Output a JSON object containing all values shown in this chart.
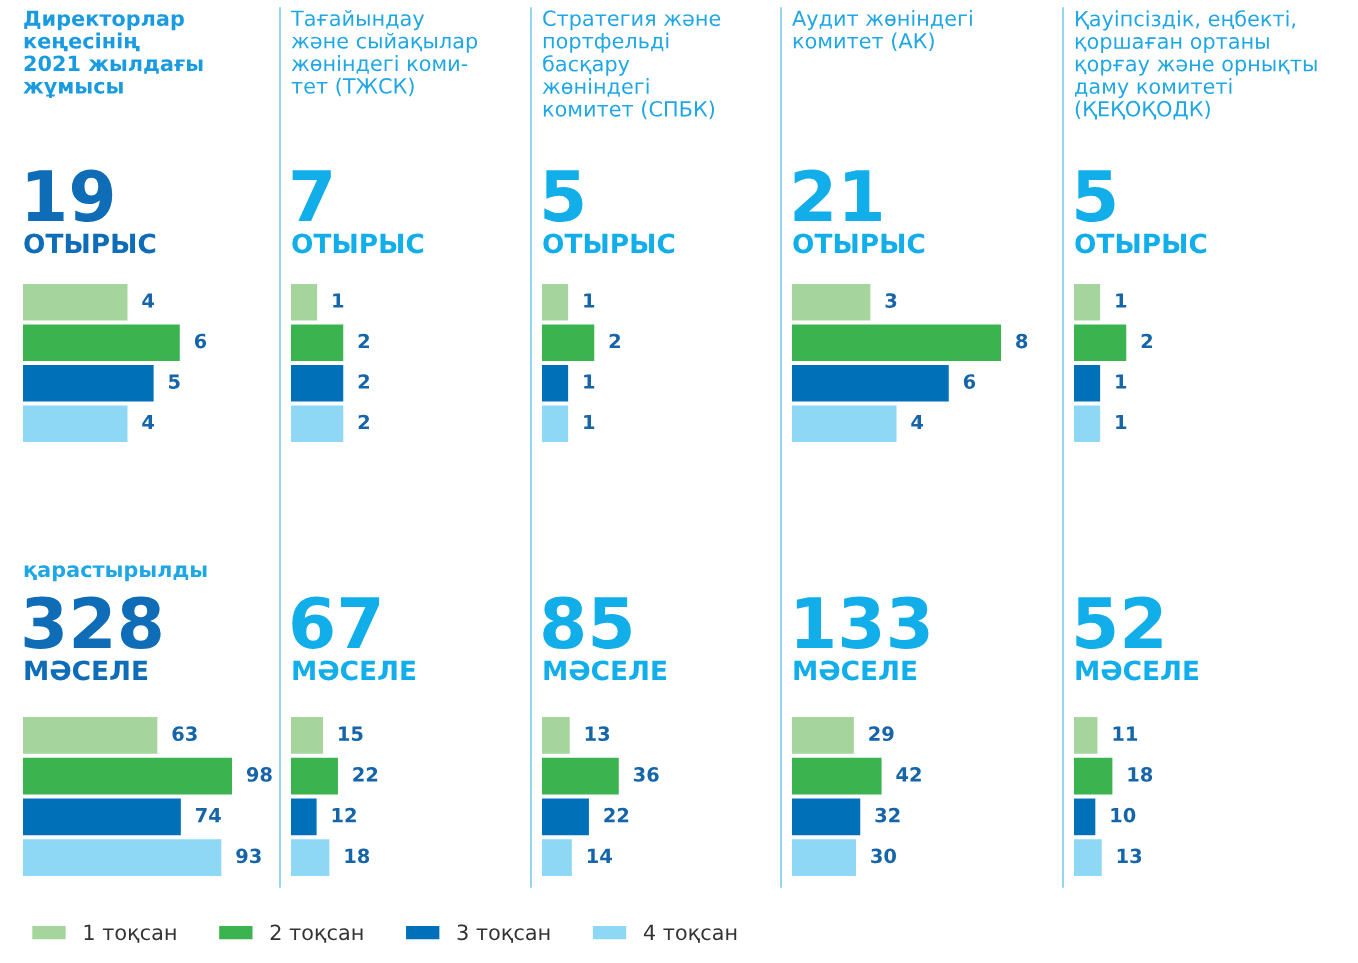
{
  "chart_data": [
    {
      "type": "bar",
      "orientation": "horizontal",
      "title": "Директорлар\nкеңесінің\n2021 жылдағы\nжұмысы",
      "annotations": [
        "19",
        "ОТЫРЫС"
      ],
      "categories": [
        null
      ],
      "data_labels": true,
      "legend": "bottom right",
      "series": [
        {
          "name": "1 тоқсан",
          "color": "#a5d49d",
          "values": [
            4
          ]
        },
        {
          "name": "2 тоқсан",
          "color": "#3bb34f",
          "values": [
            6
          ]
        },
        {
          "name": "3 тоқсан",
          "color": "#0070b8",
          "values": [
            5
          ]
        },
        {
          "name": "4 тоқсан",
          "color": "#8fd8f5",
          "values": [
            4
          ]
        }
      ]
    },
    {
      "type": "bar",
      "orientation": "horizontal",
      "title": "Тағайындау\nжәне сыйақылар\nжөніндегі коми-\nтет (ТЖСК)",
      "annotations": [
        "7",
        "ОТЫРЫС"
      ],
      "categories": [
        null
      ],
      "data_labels": true,
      "series": [
        {
          "color": "#a5d49d",
          "values": [
            1
          ]
        },
        {
          "color": "#3bb34f",
          "values": [
            2
          ]
        },
        {
          "color": "#0070b8",
          "values": [
            2
          ]
        },
        {
          "color": "#8fd8f5",
          "values": [
            2
          ]
        }
      ]
    },
    {
      "type": "bar",
      "orientation": "horizontal",
      "title": "Стратегия және\nпортфельді\nбасқару\nжөніндегі\nкомитет (СПБК)",
      "annotations": [
        "5",
        "ОТЫРЫС"
      ],
      "categories": [
        null
      ],
      "data_labels": true,
      "series": [
        {
          "color": "#a5d49d",
          "values": [
            1
          ]
        },
        {
          "color": "#3bb34f",
          "values": [
            2
          ]
        },
        {
          "color": "#0070b8",
          "values": [
            1
          ]
        },
        {
          "color": "#8fd8f5",
          "values": [
            1
          ]
        }
      ]
    },
    {
      "type": "bar",
      "orientation": "horizontal",
      "title": "Аудит жөніндегі\nкомитет (АК)",
      "annotations": [
        "21",
        "ОТЫРЫС"
      ],
      "categories": [
        null
      ],
      "data_labels": true,
      "series": [
        {
          "color": "#a5d49d",
          "values": [
            3
          ]
        },
        {
          "color": "#3bb34f",
          "values": [
            8
          ]
        },
        {
          "color": "#0070b8",
          "values": [
            6
          ]
        },
        {
          "color": "#8fd8f5",
          "values": [
            4
          ]
        }
      ]
    },
    {
      "type": "bar",
      "orientation": "horizontal",
      "title": "Қауіпсіздік, еңбекті,\nқоршаған ортаны\nқорғау және орнықты\nдаму комитеті\n(ҚЕҚОҚОДК)",
      "annotations": [
        "5",
        "ОТЫРЫС"
      ],
      "categories": [
        null
      ],
      "data_labels": true,
      "series": [
        {
          "color": "#a5d49d",
          "values": [
            1
          ]
        },
        {
          "color": "#3bb34f",
          "values": [
            2
          ]
        },
        {
          "color": "#0070b8",
          "values": [
            1
          ]
        },
        {
          "color": "#8fd8f5",
          "values": [
            1
          ]
        }
      ]
    },
    {
      "type": "bar",
      "orientation": "horizontal",
      "annotations": [
        "қарастырылды",
        "328",
        "МӘСЕЛЕ"
      ],
      "categories": [
        null
      ],
      "data_labels": true,
      "series": [
        {
          "color": "#a5d49d",
          "values": [
            63
          ]
        },
        {
          "color": "#3bb34f",
          "values": [
            98
          ]
        },
        {
          "color": "#0070b8",
          "values": [
            74
          ]
        },
        {
          "color": "#8fd8f5",
          "values": [
            93
          ]
        }
      ]
    },
    {
      "type": "bar",
      "orientation": "horizontal",
      "annotations": [
        "67",
        "МӘСЕЛЕ"
      ],
      "categories": [
        null
      ],
      "data_labels": true,
      "series": [
        {
          "color": "#a5d49d",
          "values": [
            15
          ]
        },
        {
          "color": "#3bb34f",
          "values": [
            22
          ]
        },
        {
          "color": "#0070b8",
          "values": [
            12
          ]
        },
        {
          "color": "#8fd8f5",
          "values": [
            18
          ]
        }
      ]
    },
    {
      "type": "bar",
      "orientation": "horizontal",
      "annotations": [
        "85",
        "МӘСЕЛЕ"
      ],
      "categories": [
        null
      ],
      "data_labels": true,
      "series": [
        {
          "color": "#a5d49d",
          "values": [
            13
          ]
        },
        {
          "color": "#3bb34f",
          "values": [
            36
          ]
        },
        {
          "color": "#0070b8",
          "values": [
            22
          ]
        },
        {
          "color": "#8fd8f5",
          "values": [
            14
          ]
        }
      ]
    },
    {
      "type": "bar",
      "orientation": "horizontal",
      "annotations": [
        "133",
        "МӘСЕЛЕ"
      ],
      "categories": [
        null
      ],
      "data_labels": true,
      "series": [
        {
          "color": "#a5d49d",
          "values": [
            29
          ]
        },
        {
          "color": "#3bb34f",
          "values": [
            42
          ]
        },
        {
          "color": "#0070b8",
          "values": [
            32
          ]
        },
        {
          "color": "#8fd8f5",
          "values": [
            30
          ]
        }
      ]
    },
    {
      "type": "bar",
      "orientation": "horizontal",
      "annotations": [
        "52",
        "МӘСЕЛЕ"
      ],
      "categories": [
        null
      ],
      "data_labels": true,
      "series": [
        {
          "color": "#a5d49d",
          "values": [
            11
          ]
        },
        {
          "color": "#3bb34f",
          "values": [
            18
          ]
        },
        {
          "color": "#0070b8",
          "values": [
            10
          ]
        },
        {
          "color": "#8fd8f5",
          "values": [
            13
          ]
        }
      ]
    }
  ]
}
